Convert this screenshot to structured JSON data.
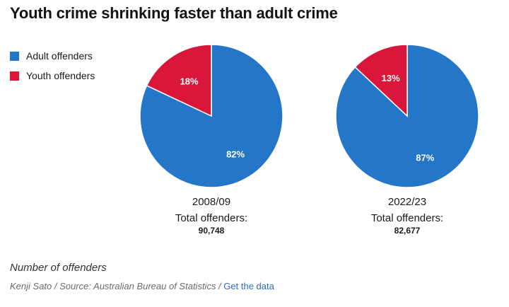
{
  "title": "Youth crime shrinking faster than adult crime",
  "colors": {
    "adult": "#2476c9",
    "youth": "#d9173b"
  },
  "legend": [
    {
      "label": "Adult offenders",
      "color": "#2476c9"
    },
    {
      "label": "Youth offenders",
      "color": "#d9173b"
    }
  ],
  "chart_data": [
    {
      "type": "pie",
      "year": "2008/09",
      "total_label": "Total offenders:",
      "total_value": "90,748",
      "slices": [
        {
          "name": "Adult offenders",
          "value": 82,
          "label": "82%",
          "color": "#2476c9"
        },
        {
          "name": "Youth offenders",
          "value": 18,
          "label": "18%",
          "color": "#d9173b"
        }
      ]
    },
    {
      "type": "pie",
      "year": "2022/23",
      "total_label": "Total offenders:",
      "total_value": "82,677",
      "slices": [
        {
          "name": "Adult offenders",
          "value": 87,
          "label": "87%",
          "color": "#2476c9"
        },
        {
          "name": "Youth offenders",
          "value": 13,
          "label": "13%",
          "color": "#d9173b"
        }
      ]
    }
  ],
  "footer": {
    "note": "Number of offenders",
    "credit": "Kenji Sato / Source: Australian Bureau of Statistics / ",
    "link_text": "Get the data"
  }
}
